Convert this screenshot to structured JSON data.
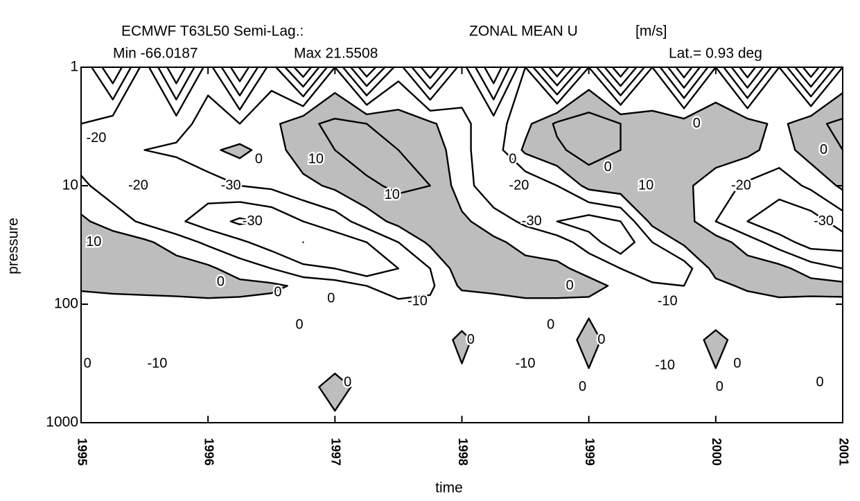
{
  "chart_data": {
    "type": "contour",
    "title": "ECMWF T63L50 Semi-Lag.:",
    "variable": "ZONAL MEAN U",
    "units": "[m/s]",
    "min_label": "Min -66.0187",
    "max_label": "Max 21.5508",
    "lat_label": "Lat.= 0.93 deg",
    "xlabel": "time",
    "ylabel": "pressure",
    "xlim": [
      1995,
      2001
    ],
    "xticks": [
      1995,
      1996,
      1997,
      1998,
      1999,
      2000,
      2001
    ],
    "ylim": [
      1,
      1000
    ],
    "yticks": [
      1,
      10,
      100,
      1000
    ],
    "ylog": true,
    "yreverse": true,
    "x": [
      1995,
      1995.25,
      1995.5,
      1995.75,
      1996,
      1996.25,
      1996.5,
      1996.75,
      1997,
      1997.25,
      1997.5,
      1997.75,
      1998,
      1998.25,
      1998.5,
      1998.75,
      1999,
      1999.25,
      1999.5,
      1999.75,
      2000,
      2000.25,
      2000.5,
      2000.75,
      2001
    ],
    "y": [
      1,
      3,
      5,
      10,
      20,
      30,
      50,
      70,
      100,
      200,
      500,
      1000
    ],
    "z": [
      [
        -20,
        -20,
        -15,
        -8,
        2,
        10,
        6,
        2,
        -5,
        -5,
        -2,
        -1
      ],
      [
        -50,
        -15,
        -12,
        -15,
        -5,
        6,
        8,
        3,
        -4,
        -5,
        -2,
        -1
      ],
      [
        -15,
        -10,
        -10,
        -20,
        -12,
        2,
        6,
        3,
        -3,
        -5,
        -2,
        -1
      ],
      [
        -50,
        -15,
        -8,
        -18,
        -18,
        -5,
        5,
        4,
        -3,
        -8,
        -3,
        -1
      ],
      [
        -15,
        -5,
        -2,
        -15,
        -25,
        -12,
        2,
        4,
        -2,
        -5,
        -2,
        -1
      ],
      [
        -50,
        -10,
        3,
        -10,
        -32,
        -18,
        -5,
        3,
        -2,
        -5,
        -2,
        -1
      ],
      [
        -15,
        -3,
        -5,
        -8,
        -28,
        -25,
        -10,
        2,
        -3,
        -4,
        -2,
        -1
      ],
      [
        -50,
        8,
        6,
        -3,
        -20,
        -30,
        -18,
        -2,
        -4,
        -5,
        -2,
        -1
      ],
      [
        -10,
        12,
        10,
        2,
        -15,
        -25,
        -20,
        -5,
        -5,
        -5,
        2,
        -1
      ],
      [
        -50,
        10,
        15,
        8,
        -5,
        -20,
        -28,
        -10,
        -6,
        -5,
        -2,
        -1
      ],
      [
        -15,
        5,
        10,
        12,
        3,
        -10,
        -20,
        -15,
        -8,
        -5,
        -2,
        -1
      ],
      [
        -50,
        2,
        8,
        10,
        8,
        2,
        -10,
        -12,
        -8,
        -5,
        -2,
        -1
      ],
      [
        -15,
        -8,
        -8,
        -5,
        2,
        6,
        6,
        2,
        -6,
        2,
        -2,
        -1
      ],
      [
        -50,
        -15,
        -15,
        -18,
        -5,
        2,
        4,
        3,
        -4,
        -5,
        -2,
        -1
      ],
      [
        -10,
        -3,
        2,
        -18,
        -12,
        -3,
        3,
        4,
        -2,
        -4,
        -2,
        -1
      ],
      [
        -50,
        12,
        8,
        -10,
        -20,
        -5,
        2,
        4,
        -2,
        -5,
        -2,
        -1
      ],
      [
        -10,
        15,
        15,
        3,
        -25,
        -15,
        -3,
        3,
        -2,
        3,
        -2,
        -1
      ],
      [
        -50,
        10,
        10,
        6,
        -20,
        -28,
        -10,
        -2,
        -4,
        -5,
        -2,
        -1
      ],
      [
        -10,
        3,
        6,
        8,
        3,
        -10,
        -18,
        -8,
        -5,
        -5,
        -2,
        -1
      ],
      [
        -50,
        5,
        6,
        2,
        5,
        2,
        -15,
        -10,
        -6,
        -5,
        -2,
        -1
      ],
      [
        -10,
        6,
        5,
        -5,
        -10,
        5,
        4,
        -3,
        -8,
        3,
        -2,
        -1
      ],
      [
        -50,
        5,
        3,
        -12,
        -20,
        -5,
        5,
        2,
        -5,
        -5,
        -2,
        -1
      ],
      [
        -10,
        -3,
        -5,
        -15,
        -28,
        -15,
        3,
        5,
        -3,
        -5,
        -2,
        -1
      ],
      [
        -50,
        8,
        5,
        -8,
        -25,
        -25,
        -5,
        4,
        -3,
        -5,
        -2,
        -1
      ],
      [
        -10,
        12,
        10,
        2,
        -15,
        -25,
        -10,
        3,
        -2,
        -5,
        -2,
        -1
      ]
    ],
    "levels": [
      -60,
      -50,
      -40,
      -30,
      -20,
      -10,
      0,
      10,
      20
    ],
    "shade_above": 0,
    "shade_color": "#bdbdbd",
    "line_color": "#000000",
    "contour_labels": [
      {
        "x": 1995.12,
        "y": 4,
        "value": -20
      },
      {
        "x": 1996.4,
        "y": 6,
        "value": 0
      },
      {
        "x": 1995.45,
        "y": 10,
        "value": -20
      },
      {
        "x": 1996.18,
        "y": 10,
        "value": -30
      },
      {
        "x": 1996.35,
        "y": 20,
        "value": -30
      },
      {
        "x": 1996.85,
        "y": 6,
        "value": 10
      },
      {
        "x": 1997.45,
        "y": 12,
        "value": 10
      },
      {
        "x": 1995.1,
        "y": 30,
        "value": 10
      },
      {
        "x": 1996.1,
        "y": 65,
        "value": 0
      },
      {
        "x": 1996.55,
        "y": 80,
        "value": 0
      },
      {
        "x": 1996.72,
        "y": 150,
        "value": 0
      },
      {
        "x": 1996.97,
        "y": 90,
        "value": 0
      },
      {
        "x": 1997.65,
        "y": 95,
        "value": -10
      },
      {
        "x": 1995.6,
        "y": 320,
        "value": -10
      },
      {
        "x": 1995.05,
        "y": 320,
        "value": 0
      },
      {
        "x": 1997.1,
        "y": 460,
        "value": 0
      },
      {
        "x": 1998.4,
        "y": 6,
        "value": 0
      },
      {
        "x": 1998.45,
        "y": 10,
        "value": -20
      },
      {
        "x": 1998.55,
        "y": 20,
        "value": -30
      },
      {
        "x": 1999.15,
        "y": 7,
        "value": 0
      },
      {
        "x": 1999.45,
        "y": 10,
        "value": 10
      },
      {
        "x": 1998.07,
        "y": 200,
        "value": 0
      },
      {
        "x": 1998.7,
        "y": 150,
        "value": 0
      },
      {
        "x": 1998.5,
        "y": 320,
        "value": -10
      },
      {
        "x": 1999.1,
        "y": 200,
        "value": 0
      },
      {
        "x": 1998.95,
        "y": 500,
        "value": 0
      },
      {
        "x": 1999.62,
        "y": 95,
        "value": -10
      },
      {
        "x": 1999.6,
        "y": 330,
        "value": -10
      },
      {
        "x": 2000.2,
        "y": 10,
        "value": -20
      },
      {
        "x": 2000.85,
        "y": 20,
        "value": -30
      },
      {
        "x": 2000.85,
        "y": 5,
        "value": 0
      },
      {
        "x": 1999.85,
        "y": 3,
        "value": 0
      },
      {
        "x": 1998.85,
        "y": 70,
        "value": 0
      },
      {
        "x": 2000.03,
        "y": 500,
        "value": 0
      },
      {
        "x": 2000.17,
        "y": 320,
        "value": 0
      },
      {
        "x": 2000.82,
        "y": 460,
        "value": 0
      }
    ]
  }
}
